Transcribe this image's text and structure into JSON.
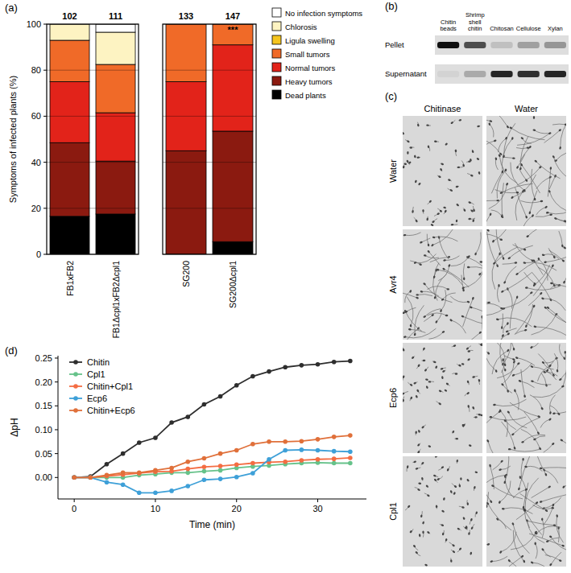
{
  "chart_data": [
    {
      "type": "bar",
      "title": "(a)",
      "stacked": true,
      "grid": true,
      "legend": "right",
      "y_label": "Symptoms of infected plants (%)",
      "categories": [
        "FB1xFB2",
        "FB1Δcpl1xFB2Δcpl1",
        "SG200",
        "SG200Δcpl1"
      ],
      "n": [
        102,
        111,
        133,
        147
      ],
      "annotations": [
        {
          "text": "***",
          "category": "SG200Δcpl1"
        }
      ],
      "ylim": [
        0,
        100
      ],
      "yticks": [
        0,
        20,
        40,
        60,
        80,
        100
      ],
      "series": [
        {
          "name": "Dead plants",
          "color": "#000000",
          "values": [
            16.5,
            17.5,
            0,
            5.5
          ]
        },
        {
          "name": "Heavy tumors",
          "color": "#8b1a10",
          "values": [
            32,
            23,
            45,
            48
          ]
        },
        {
          "name": "Normal tumors",
          "color": "#e2231a",
          "values": [
            26.5,
            21,
            30,
            37.5
          ]
        },
        {
          "name": "Small tumors",
          "color": "#f06a28",
          "values": [
            18,
            21,
            25,
            9
          ]
        },
        {
          "name": "Ligula swelling",
          "color": "#f5c51f",
          "values": [
            0,
            0,
            0,
            0
          ]
        },
        {
          "name": "Chlorosis",
          "color": "#fdf3c2",
          "values": [
            7,
            14,
            0,
            0
          ]
        },
        {
          "name": "No infection symptoms",
          "color": "#ffffff",
          "values": [
            0,
            3.5,
            0,
            0
          ]
        }
      ]
    },
    {
      "type": "blot",
      "title": "(b)",
      "categories": [
        "Chitin beads",
        "Shrimp shell chitin",
        "Chitosan",
        "Cellulose",
        "Xylan"
      ],
      "series": [
        {
          "name": "Pellet",
          "values": [
            1.0,
            0.7,
            0.15,
            0.3,
            0.35
          ]
        },
        {
          "name": "Supernatant",
          "values": [
            0.05,
            0.25,
            0.9,
            0.85,
            0.9
          ]
        }
      ]
    },
    {
      "type": "image_grid",
      "title": "(c)",
      "categories": [
        "Chitinase",
        "Water"
      ],
      "rows": [
        "Water",
        "Avr4",
        "Ecp6",
        "Cpl1"
      ]
    },
    {
      "type": "line",
      "title": "(d)",
      "x_label": "Time (min)",
      "y_label": "ΔpH",
      "legend": "top-left",
      "marker": "circle",
      "line_style": "solid",
      "x": [
        0,
        2,
        4,
        6,
        8,
        10,
        12,
        14,
        16,
        18,
        20,
        22,
        24,
        26,
        28,
        30,
        32,
        34
      ],
      "xlim": [
        -2,
        36
      ],
      "xticks": [
        0,
        10,
        20,
        30
      ],
      "ylim": [
        -0.045,
        0.255
      ],
      "yticks": [
        {
          "value": 0,
          "label": "0.00"
        },
        {
          "value": 0.05,
          "label": "0.05"
        },
        {
          "value": 0.1,
          "label": "0.10"
        },
        {
          "value": 0.15,
          "label": "0.15"
        },
        {
          "value": 0.2,
          "label": "0.20"
        },
        {
          "value": 0.25,
          "label": "0.25"
        }
      ],
      "series": [
        {
          "name": "Chitin",
          "color": "#2e2e2e",
          "values": [
            0,
            0.002,
            0.028,
            0.05,
            0.073,
            0.083,
            0.115,
            0.127,
            0.153,
            0.17,
            0.193,
            0.212,
            0.222,
            0.231,
            0.235,
            0.237,
            0.242,
            0.244
          ]
        },
        {
          "name": "Cpl1",
          "color": "#66c28a",
          "values": [
            0,
            0,
            0,
            0,
            0.005,
            0.007,
            0.01,
            0.01,
            0.013,
            0.015,
            0.02,
            0.023,
            0.025,
            0.028,
            0.03,
            0.031,
            0.03,
            0.03
          ]
        },
        {
          "name": "Chitin+Cpl1",
          "color": "#f46d43",
          "values": [
            0,
            0,
            0.003,
            0.006,
            0.009,
            0.012,
            0.013,
            0.018,
            0.022,
            0.024,
            0.027,
            0.03,
            0.032,
            0.033,
            0.036,
            0.038,
            0.039,
            0.041
          ]
        },
        {
          "name": "Ecp6",
          "color": "#3ea0d8",
          "values": [
            0,
            0,
            -0.01,
            -0.015,
            -0.032,
            -0.032,
            -0.028,
            -0.018,
            -0.005,
            -0.003,
            0.001,
            0.009,
            0.038,
            0.057,
            0.058,
            0.057,
            0.055,
            0.054
          ]
        },
        {
          "name": "Chitin+Ecp6",
          "color": "#e0703a",
          "values": [
            0,
            0,
            0.005,
            0.01,
            0.01,
            0.015,
            0.02,
            0.033,
            0.04,
            0.05,
            0.057,
            0.07,
            0.075,
            0.075,
            0.076,
            0.08,
            0.085,
            0.088
          ]
        }
      ]
    }
  ]
}
